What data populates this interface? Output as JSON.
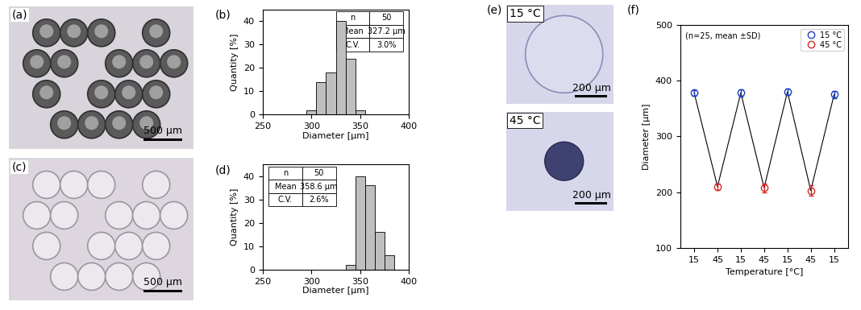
{
  "chart_data": [
    {
      "type": "histogram",
      "panel": "(b)",
      "bins": [
        295,
        305,
        315,
        325,
        335,
        345,
        355
      ],
      "counts": [
        2,
        14,
        18,
        40,
        24,
        2
      ],
      "color": "#bfbfbf",
      "xlim": [
        250,
        400
      ],
      "xticks": [
        250,
        300,
        350,
        400
      ],
      "ylim": [
        0,
        45
      ],
      "yticks": [
        0,
        10,
        20,
        30,
        40
      ],
      "x_label": "Diameter [µm]",
      "y_label": "Quantity [%]",
      "table": {
        "rows": [
          [
            "n",
            "50"
          ],
          [
            "Mean",
            "327.2 µm"
          ],
          [
            "C.V.",
            "3.0%"
          ]
        ]
      }
    },
    {
      "type": "histogram",
      "panel": "(d)",
      "bins": [
        335,
        345,
        355,
        365,
        375,
        385
      ],
      "counts": [
        2,
        40,
        36,
        16,
        6
      ],
      "color": "#bfbfbf",
      "xlim": [
        250,
        400
      ],
      "xticks": [
        250,
        300,
        350,
        400
      ],
      "ylim": [
        0,
        45
      ],
      "yticks": [
        0,
        10,
        20,
        30,
        40
      ],
      "x_label": "Diameter [µm]",
      "y_label": "Quantity [%]",
      "table": {
        "rows": [
          [
            "n",
            "50"
          ],
          [
            "Mean",
            "358.6 µm"
          ],
          [
            "C.V.",
            "2.6%"
          ]
        ]
      }
    },
    {
      "type": "line",
      "panel": "(f)",
      "categories": [
        "15",
        "45",
        "15",
        "45",
        "15",
        "45",
        "15"
      ],
      "color": "#000000",
      "line_style": "solid",
      "series": [
        {
          "name": "15 °C",
          "color": "#1f3fbf",
          "marker": "circle",
          "values": [
            378,
            null,
            378,
            null,
            380,
            null,
            375
          ],
          "errors": [
            5,
            null,
            6,
            null,
            6,
            null,
            7
          ]
        },
        {
          "name": "45 °C",
          "color": "#d62728",
          "marker": "circle",
          "values": [
            null,
            210,
            null,
            208,
            null,
            203,
            null
          ],
          "errors": [
            null,
            6,
            null,
            8,
            null,
            9,
            null
          ]
        }
      ],
      "ylim": [
        100,
        500
      ],
      "yticks": [
        100,
        200,
        300,
        400,
        500
      ],
      "x_label": "Temperature [°C]",
      "y_label": "Diameter [µm]",
      "annotation": "(n=25, mean ±SD)",
      "legend": "upper right"
    }
  ],
  "images": [
    {
      "panel": "(a)",
      "scale_bar": "500 µm"
    },
    {
      "panel": "(c)",
      "scale_bar": "500 µm"
    },
    {
      "panel": "(e)",
      "photos": [
        {
          "label": "15 °C",
          "scale_bar": "200 µm"
        },
        {
          "label": "45 °C",
          "scale_bar": "200 µm"
        }
      ]
    }
  ]
}
